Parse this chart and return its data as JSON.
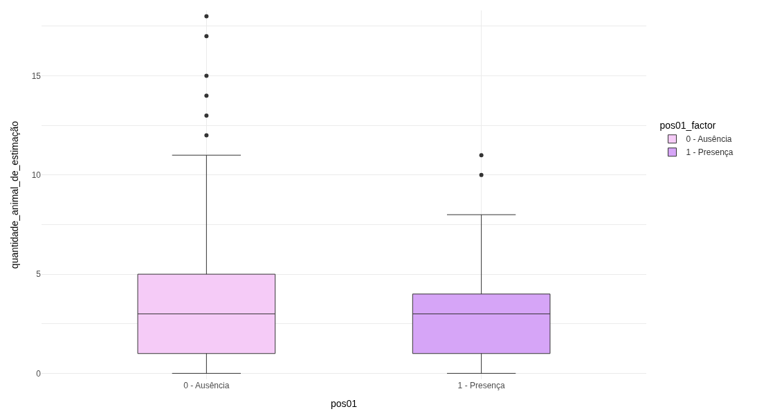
{
  "chart_data": {
    "type": "box",
    "xlabel": "pos01",
    "ylabel": "quantidade_animal_de_estimação",
    "legend_title": "pos01_factor",
    "categories": [
      "0 - Ausência",
      "1 - Presença"
    ],
    "series": [
      {
        "name": "0 - Ausência",
        "color": "#f5cbf7",
        "boxes": [
          {
            "low": 0,
            "q1": 1,
            "median": 3,
            "q3": 5,
            "high": 11,
            "outliers": [
              12,
              13,
              14,
              15,
              17,
              18
            ]
          },
          null
        ]
      },
      {
        "name": "1 - Presença",
        "color": "#d6a5f7",
        "boxes": [
          null,
          {
            "low": 0,
            "q1": 1,
            "median": 3,
            "q3": 4,
            "high": 8,
            "outliers": [
              10,
              11
            ]
          }
        ]
      }
    ],
    "ylim": [
      -0.3,
      18.3
    ],
    "yticks": [
      0,
      {
        "value": 2.5,
        "label": null
      },
      5,
      {
        "value": 7.5,
        "label": null
      },
      10,
      {
        "value": 12.5,
        "label": null
      },
      15,
      {
        "value": 17.5,
        "label": null
      }
    ],
    "grid": true,
    "legend": "right"
  }
}
